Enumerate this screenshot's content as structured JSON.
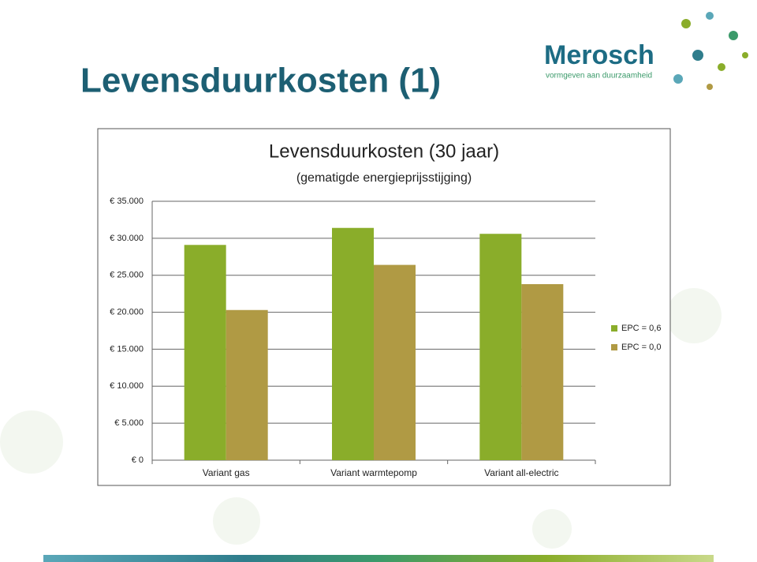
{
  "slide_title": "Levensduurkosten (1)",
  "logo": {
    "name": "Merosch",
    "tagline": "vormgeven aan duurzaamheid"
  },
  "chart_data": {
    "type": "bar",
    "title": "Levensduurkosten (30 jaar)",
    "subtitle": "(gematigde energieprijsstijging)",
    "categories": [
      "Variant gas",
      "Variant warmtepomp",
      "Variant all-electric"
    ],
    "series": [
      {
        "name": "EPC = 0,6",
        "color": "#8aad2a",
        "values": [
          29100,
          31400,
          30600
        ]
      },
      {
        "name": "EPC = 0,0",
        "color": "#b09a44",
        "values": [
          20300,
          26400,
          23800
        ]
      }
    ],
    "ylim": [
      0,
      35000
    ],
    "yticks": [
      {
        "value": 0,
        "label": "€ 0"
      },
      {
        "value": 5000,
        "label": "€ 5.000"
      },
      {
        "value": 10000,
        "label": "€ 10.000"
      },
      {
        "value": 15000,
        "label": "€ 15.000"
      },
      {
        "value": 20000,
        "label": "€ 20.000"
      },
      {
        "value": 25000,
        "label": "€ 25.000"
      },
      {
        "value": 30000,
        "label": "€ 30.000"
      },
      {
        "value": 35000,
        "label": "€ 35.000"
      }
    ],
    "grid": true,
    "legend": "right"
  }
}
